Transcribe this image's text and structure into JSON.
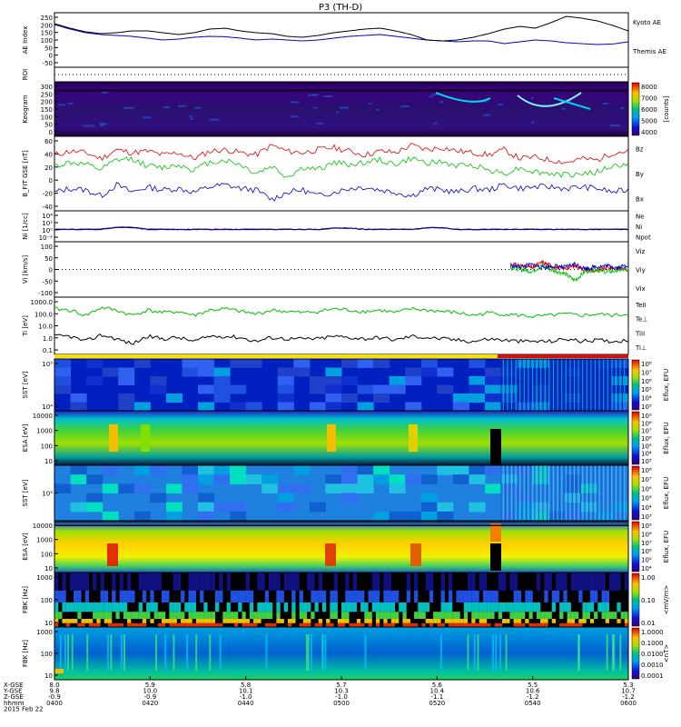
{
  "title": "P3 (TH-D)",
  "colors": {
    "black": "#000000",
    "red": "#e00000",
    "green": "#00c000",
    "blue": "#0000c8",
    "yellow": "#f7e000",
    "bar_red": "#d01010"
  },
  "chart_data": [
    {
      "type": "line",
      "name": "ae",
      "ylabel": "AE Index",
      "ylim": [
        -50,
        250
      ],
      "yticks": [
        "250",
        "200",
        "150",
        "100",
        "50",
        "0",
        "-50"
      ],
      "series": [
        {
          "name": "Kyoto AE",
          "color": "#0000c8",
          "values": [
            185,
            160,
            140,
            130,
            125,
            120,
            110,
            100,
            105,
            115,
            120,
            118,
            110,
            100,
            105,
            100,
            95,
            100,
            110,
            120,
            125,
            130,
            120,
            110,
            100,
            95,
            90,
            95,
            95,
            80,
            90,
            100,
            95,
            85,
            80,
            75,
            78,
            90
          ]
        },
        {
          "name": "Themis AE",
          "color": "#000000",
          "values": [
            190,
            165,
            145,
            135,
            140,
            150,
            150,
            140,
            130,
            140,
            160,
            165,
            150,
            140,
            135,
            120,
            115,
            125,
            140,
            150,
            160,
            165,
            150,
            130,
            100,
            95,
            100,
            115,
            135,
            160,
            175,
            165,
            195,
            230,
            220,
            205,
            180,
            150
          ]
        }
      ]
    },
    {
      "type": "heatmap",
      "name": "roi",
      "ylabel": "ROI",
      "yticks": []
    },
    {
      "type": "heatmap",
      "name": "keogram",
      "ylabel": "Keogram",
      "ylim": [
        0,
        300
      ],
      "yticks": [
        "300",
        "250",
        "200",
        "150",
        "100",
        "50",
        "0"
      ],
      "colorbar": {
        "label": "[counts]",
        "ticks": [
          "8000",
          "7000",
          "6000",
          "5000",
          "4000"
        ]
      }
    },
    {
      "type": "line",
      "name": "bfield",
      "ylabel": "B_FIT GSE [nT]",
      "ylim": [
        -40,
        60
      ],
      "yticks": [
        "60",
        "40",
        "20",
        "0",
        "-20",
        "-40"
      ],
      "series": [
        {
          "name": "Bz",
          "color": "#e00000",
          "values": [
            35,
            40,
            38,
            30,
            42,
            38,
            40,
            35,
            38,
            30,
            40,
            42,
            38,
            35,
            48,
            40,
            38,
            42,
            45,
            40,
            35,
            40,
            38,
            48,
            42,
            45,
            40,
            38,
            35,
            42,
            30,
            32,
            28,
            25,
            30,
            28,
            38,
            40
          ]
        },
        {
          "name": "By",
          "color": "#00c000",
          "values": [
            20,
            25,
            22,
            15,
            28,
            30,
            20,
            18,
            22,
            15,
            25,
            28,
            22,
            10,
            20,
            5,
            18,
            15,
            25,
            22,
            25,
            28,
            22,
            30,
            25,
            25,
            20,
            22,
            15,
            10,
            18,
            12,
            10,
            8,
            10,
            12,
            20,
            22
          ]
        },
        {
          "name": "Bx",
          "color": "#0000c8",
          "values": [
            -15,
            -10,
            -12,
            -20,
            -5,
            -15,
            -8,
            -12,
            -10,
            -15,
            -8,
            -5,
            -10,
            -12,
            -25,
            -15,
            -12,
            -20,
            -15,
            -10,
            -8,
            -12,
            -15,
            -20,
            -10,
            -12,
            -15,
            -10,
            -12,
            -5,
            -10,
            -8,
            -8,
            -10,
            -8,
            -10,
            -15,
            -12
          ]
        }
      ]
    },
    {
      "type": "line",
      "name": "density",
      "ylabel": "Ni [1/cc]",
      "log": true,
      "yticks": [
        "10⁴",
        "10²",
        "10⁰",
        "10⁻²"
      ],
      "series": [
        {
          "name": "Ne",
          "color": "#e00000",
          "values": [
            0,
            0,
            0,
            0,
            0.5,
            0.5,
            0,
            0,
            0,
            0,
            0,
            0,
            0,
            0,
            0,
            0,
            0,
            0,
            0.3,
            0.3,
            0,
            0,
            0,
            0,
            0.4,
            0.4,
            0,
            0,
            0,
            0,
            0,
            0,
            0,
            0,
            0,
            0,
            0,
            0
          ]
        },
        {
          "name": "Ni",
          "color": "#000000",
          "values": [
            0,
            0,
            0,
            0,
            0.5,
            0.5,
            0,
            0,
            0,
            0,
            0,
            0,
            0,
            0,
            0,
            0,
            0,
            0,
            0.3,
            0.3,
            0,
            0,
            0,
            0,
            0.4,
            0.4,
            0,
            0,
            0,
            0,
            0,
            0,
            0,
            0,
            0,
            0,
            0,
            0
          ]
        },
        {
          "name": "Npot",
          "color": "#0000c8",
          "values": [
            0,
            0,
            0,
            0,
            0.5,
            0.5,
            0,
            0,
            0,
            0,
            0,
            0,
            0,
            0,
            0,
            0,
            0,
            0,
            0.3,
            0.3,
            0,
            0,
            0,
            0,
            0.4,
            0.4,
            0,
            0,
            0,
            0,
            0,
            0,
            0,
            0,
            0,
            0,
            0,
            0
          ]
        }
      ]
    },
    {
      "type": "line",
      "name": "velocity",
      "ylabel": "Vi [km/s]",
      "ylim": [
        -150,
        150
      ],
      "yticks": [
        "100",
        "50",
        "0",
        "-50",
        "-100"
      ],
      "series": [
        {
          "name": "Viz",
          "color": "#e00000",
          "values": [
            30,
            20,
            10,
            40,
            15,
            5,
            20,
            0,
            -10,
            10,
            5,
            0
          ]
        },
        {
          "name": "Viy",
          "color": "#00c000",
          "values": [
            10,
            0,
            -10,
            20,
            -5,
            -20,
            -60,
            -10,
            0,
            -15,
            -5,
            0
          ]
        },
        {
          "name": "Vix",
          "color": "#0000c8",
          "values": [
            20,
            15,
            25,
            10,
            20,
            10,
            30,
            5,
            15,
            20,
            10,
            25
          ]
        }
      ]
    },
    {
      "type": "line",
      "name": "temperature",
      "ylabel": "Ti [eV]",
      "log": true,
      "yticks": [
        "1000.0",
        "100.0",
        "10.0",
        "1.0",
        "0.1"
      ],
      "series": [
        {
          "name": "TeII",
          "color": "#000000"
        },
        {
          "name": "Te⊥",
          "color": "#e00000"
        },
        {
          "name": "TiII",
          "color": "#00c000"
        },
        {
          "name": "Ti⊥",
          "color": "#0000c8"
        }
      ]
    },
    {
      "type": "heatmap",
      "name": "sst-e",
      "ylabel": "SST [eV]",
      "yticks": [
        "10⁵",
        "10⁴"
      ],
      "colorbar": {
        "label": "Eflux, EFU",
        "ticks": [
          "10⁸",
          "10⁷",
          "10⁶",
          "10⁵",
          "10⁴",
          "10³"
        ]
      }
    },
    {
      "type": "heatmap",
      "name": "esa-e",
      "ylabel": "ESA [eV]",
      "yticks": [
        "10000",
        "1000",
        "100",
        "10"
      ],
      "colorbar": {
        "label": "Eflux, EFU",
        "ticks": [
          "10⁹",
          "10⁸",
          "10⁷",
          "10⁶",
          "10⁵",
          "10⁴",
          "10³"
        ]
      }
    },
    {
      "type": "heatmap",
      "name": "sst-i",
      "ylabel": "SST [eV]",
      "yticks": [
        "10⁵"
      ],
      "colorbar": {
        "label": "Eflux, EFU",
        "ticks": [
          "10⁸",
          "10⁷",
          "10⁶",
          "10⁵",
          "10⁴",
          "10³"
        ]
      }
    },
    {
      "type": "heatmap",
      "name": "esa-i",
      "ylabel": "ESA [eV]",
      "yticks": [
        "10000",
        "1000",
        "100",
        "10"
      ],
      "colorbar": {
        "label": "Eflux, EFU",
        "ticks": [
          "10⁹",
          "10⁸",
          "10⁷",
          "10⁶",
          "10⁵",
          "10⁴"
        ]
      }
    },
    {
      "type": "heatmap",
      "name": "fbk-e",
      "ylabel": "FBK [Hz]",
      "yticks": [
        "1000",
        "100",
        "10"
      ],
      "colorbar": {
        "label": "<mV/m>",
        "ticks": [
          "1.00",
          "0.10",
          "0.01"
        ]
      }
    },
    {
      "type": "heatmap",
      "name": "fbk-b",
      "ylabel": "FBK [Hz]",
      "yticks": [
        "1000",
        "100",
        "10"
      ],
      "colorbar": {
        "label": "<nT>",
        "ticks": [
          "1.0000",
          "0.1000",
          "0.0100",
          "0.0010",
          "0.0001"
        ]
      }
    }
  ],
  "xaxis": {
    "row_labels": [
      "X-GSE",
      "Y-GSE",
      "Z-GSE",
      "hhmm",
      "2015 Feb 22"
    ],
    "columns": [
      [
        "8.0",
        "9.8",
        "-0.9",
        "0400"
      ],
      [
        "5.9",
        "10.0",
        "-0.9",
        "0420"
      ],
      [
        "5.8",
        "10.1",
        "-1.0",
        "0440"
      ],
      [
        "5.7",
        "10.3",
        "-1.0",
        "0500"
      ],
      [
        "5.6",
        "10.4",
        "-1.1",
        "0520"
      ],
      [
        "5.5",
        "10.6",
        "-1.2",
        "0540"
      ],
      [
        "5.3",
        "10.7",
        "-1.2",
        "0600"
      ]
    ]
  }
}
